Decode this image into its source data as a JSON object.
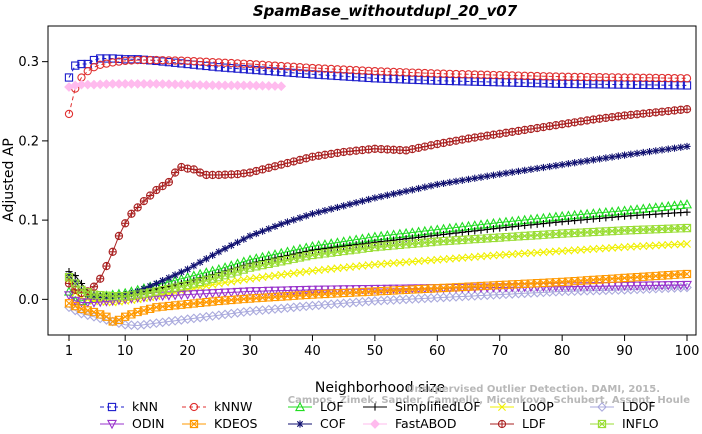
{
  "chart_data": {
    "type": "line",
    "title": "SpamBase_withoutdupl_20_v07",
    "xlabel": "Neighborhood size",
    "ylabel": "Adjusted AP",
    "xlim": [
      1,
      100
    ],
    "ylim": [
      -0.045,
      0.345
    ],
    "x_ticks": [
      1,
      10,
      20,
      30,
      40,
      50,
      60,
      70,
      80,
      90,
      100
    ],
    "y_ticks": [
      0.0,
      0.1,
      0.2,
      0.3
    ],
    "y_tick_labels": [
      "0.0",
      "0.1",
      "0.2",
      "0.3"
    ],
    "grid": false,
    "legend_position": "bottom",
    "watermark": [
      "Unsupervised Outlier Detection. DAMI, 2015.",
      "Campos, Zimek, Sander, Campello, Micenkova, Schubert, Assent, Houle"
    ],
    "series": [
      {
        "name": "kNN",
        "color": "#1c1ccc",
        "marker": "square",
        "dashed": true,
        "points": [
          [
            1,
            0.28
          ],
          [
            2,
            0.295
          ],
          [
            3,
            0.297
          ],
          [
            4,
            0.297
          ],
          [
            5,
            0.302
          ],
          [
            6,
            0.304
          ],
          [
            7,
            0.304
          ],
          [
            8,
            0.304
          ],
          [
            10,
            0.303
          ],
          [
            12,
            0.303
          ],
          [
            15,
            0.301
          ],
          [
            20,
            0.297
          ],
          [
            25,
            0.293
          ],
          [
            30,
            0.29
          ],
          [
            40,
            0.284
          ],
          [
            50,
            0.279
          ],
          [
            60,
            0.276
          ],
          [
            70,
            0.274
          ],
          [
            80,
            0.272
          ],
          [
            90,
            0.271
          ],
          [
            100,
            0.27
          ]
        ]
      },
      {
        "name": "kNNW",
        "color": "#e03030",
        "marker": "circle",
        "dashed": true,
        "points": [
          [
            1,
            0.234
          ],
          [
            2,
            0.266
          ],
          [
            3,
            0.28
          ],
          [
            4,
            0.288
          ],
          [
            5,
            0.293
          ],
          [
            6,
            0.296
          ],
          [
            8,
            0.299
          ],
          [
            10,
            0.301
          ],
          [
            12,
            0.302
          ],
          [
            15,
            0.302
          ],
          [
            20,
            0.301
          ],
          [
            25,
            0.299
          ],
          [
            30,
            0.297
          ],
          [
            40,
            0.292
          ],
          [
            50,
            0.288
          ],
          [
            60,
            0.285
          ],
          [
            70,
            0.283
          ],
          [
            80,
            0.281
          ],
          [
            90,
            0.28
          ],
          [
            100,
            0.279
          ]
        ]
      },
      {
        "name": "LOF",
        "color": "#22dd22",
        "marker": "triangle-up",
        "dashed": false,
        "points": [
          [
            1,
            0.01
          ],
          [
            2,
            -0.002
          ],
          [
            3,
            -0.002
          ],
          [
            5,
            0.002
          ],
          [
            8,
            0.006
          ],
          [
            10,
            0.008
          ],
          [
            12,
            0.012
          ],
          [
            15,
            0.018
          ],
          [
            20,
            0.028
          ],
          [
            25,
            0.038
          ],
          [
            30,
            0.05
          ],
          [
            40,
            0.067
          ],
          [
            50,
            0.079
          ],
          [
            60,
            0.088
          ],
          [
            70,
            0.097
          ],
          [
            80,
            0.105
          ],
          [
            90,
            0.112
          ],
          [
            100,
            0.12
          ]
        ]
      },
      {
        "name": "SimplifiedLOF",
        "color": "#000000",
        "marker": "plus",
        "dashed": false,
        "points": [
          [
            1,
            0.035
          ],
          [
            2,
            0.03
          ],
          [
            3,
            0.02
          ],
          [
            4,
            0.01
          ],
          [
            5,
            0.006
          ],
          [
            6,
            0.004
          ],
          [
            8,
            0.004
          ],
          [
            10,
            0.006
          ],
          [
            12,
            0.008
          ],
          [
            15,
            0.013
          ],
          [
            20,
            0.022
          ],
          [
            25,
            0.033
          ],
          [
            30,
            0.045
          ],
          [
            40,
            0.062
          ],
          [
            50,
            0.072
          ],
          [
            60,
            0.081
          ],
          [
            70,
            0.09
          ],
          [
            80,
            0.098
          ],
          [
            90,
            0.105
          ],
          [
            100,
            0.11
          ]
        ]
      },
      {
        "name": "LoOP",
        "color": "#f0f000",
        "marker": "cross",
        "dashed": false,
        "points": [
          [
            1,
            0.025
          ],
          [
            2,
            0.008
          ],
          [
            3,
            0.002
          ],
          [
            5,
            -0.002
          ],
          [
            8,
            -0.004
          ],
          [
            10,
            -0.002
          ],
          [
            12,
            0.0
          ],
          [
            15,
            0.004
          ],
          [
            20,
            0.012
          ],
          [
            25,
            0.02
          ],
          [
            30,
            0.026
          ],
          [
            40,
            0.036
          ],
          [
            50,
            0.044
          ],
          [
            60,
            0.05
          ],
          [
            70,
            0.056
          ],
          [
            80,
            0.061
          ],
          [
            90,
            0.066
          ],
          [
            100,
            0.07
          ]
        ]
      },
      {
        "name": "LDOF",
        "color": "#aaaadd",
        "marker": "diamond",
        "dashed": false,
        "points": [
          [
            1,
            -0.01
          ],
          [
            3,
            -0.018
          ],
          [
            5,
            -0.022
          ],
          [
            8,
            -0.028
          ],
          [
            10,
            -0.032
          ],
          [
            12,
            -0.033
          ],
          [
            15,
            -0.03
          ],
          [
            20,
            -0.025
          ],
          [
            25,
            -0.02
          ],
          [
            30,
            -0.015
          ],
          [
            40,
            -0.008
          ],
          [
            50,
            -0.002
          ],
          [
            60,
            0.002
          ],
          [
            70,
            0.006
          ],
          [
            80,
            0.01
          ],
          [
            90,
            0.012
          ],
          [
            100,
            0.015
          ]
        ]
      },
      {
        "name": "ODIN",
        "color": "#9933cc",
        "marker": "triangle-down",
        "dashed": false,
        "points": [
          [
            1,
            0.005
          ],
          [
            2,
            -0.002
          ],
          [
            3,
            -0.004
          ],
          [
            5,
            -0.004
          ],
          [
            8,
            -0.002
          ],
          [
            10,
            0.0
          ],
          [
            12,
            0.002
          ],
          [
            15,
            0.004
          ],
          [
            20,
            0.006
          ],
          [
            25,
            0.008
          ],
          [
            30,
            0.01
          ],
          [
            40,
            0.012
          ],
          [
            50,
            0.013
          ],
          [
            60,
            0.014
          ],
          [
            70,
            0.015
          ],
          [
            80,
            0.016
          ],
          [
            90,
            0.017
          ],
          [
            100,
            0.018
          ]
        ]
      },
      {
        "name": "KDEOS",
        "color": "#ff9900",
        "marker": "box-x",
        "dashed": false,
        "points": [
          [
            1,
            -0.005
          ],
          [
            3,
            -0.012
          ],
          [
            5,
            -0.016
          ],
          [
            7,
            -0.022
          ],
          [
            8,
            -0.028
          ],
          [
            9,
            -0.026
          ],
          [
            10,
            -0.022
          ],
          [
            12,
            -0.016
          ],
          [
            15,
            -0.01
          ],
          [
            20,
            -0.006
          ],
          [
            25,
            -0.002
          ],
          [
            30,
            0.001
          ],
          [
            40,
            0.006
          ],
          [
            50,
            0.01
          ],
          [
            60,
            0.014
          ],
          [
            70,
            0.018
          ],
          [
            80,
            0.022
          ],
          [
            90,
            0.027
          ],
          [
            100,
            0.032
          ]
        ]
      },
      {
        "name": "COF",
        "color": "#101070",
        "marker": "star",
        "dashed": false,
        "points": [
          [
            1,
            0.03
          ],
          [
            2,
            0.022
          ],
          [
            3,
            0.012
          ],
          [
            4,
            0.006
          ],
          [
            5,
            0.004
          ],
          [
            7,
            0.003
          ],
          [
            10,
            0.005
          ],
          [
            12,
            0.01
          ],
          [
            15,
            0.02
          ],
          [
            20,
            0.038
          ],
          [
            25,
            0.06
          ],
          [
            30,
            0.08
          ],
          [
            35,
            0.095
          ],
          [
            40,
            0.108
          ],
          [
            50,
            0.128
          ],
          [
            60,
            0.145
          ],
          [
            70,
            0.158
          ],
          [
            80,
            0.17
          ],
          [
            90,
            0.182
          ],
          [
            100,
            0.193
          ]
        ]
      },
      {
        "name": "FastABOD",
        "color": "#ffbbee",
        "marker": "diamond-filled",
        "dashed": false,
        "points": [
          [
            1,
            0.268
          ],
          [
            2,
            0.27
          ],
          [
            3,
            0.271
          ],
          [
            5,
            0.271
          ],
          [
            8,
            0.272
          ],
          [
            10,
            0.272
          ],
          [
            12,
            0.272
          ],
          [
            15,
            0.272
          ],
          [
            20,
            0.271
          ],
          [
            25,
            0.27
          ],
          [
            30,
            0.27
          ],
          [
            35,
            0.269
          ]
        ]
      },
      {
        "name": "LDF",
        "color": "#aa2222",
        "marker": "circle-plus",
        "dashed": false,
        "points": [
          [
            1,
            0.02
          ],
          [
            2,
            0.012
          ],
          [
            3,
            0.008
          ],
          [
            4,
            0.01
          ],
          [
            5,
            0.016
          ],
          [
            6,
            0.026
          ],
          [
            7,
            0.042
          ],
          [
            8,
            0.06
          ],
          [
            9,
            0.08
          ],
          [
            10,
            0.096
          ],
          [
            11,
            0.108
          ],
          [
            12,
            0.116
          ],
          [
            13,
            0.124
          ],
          [
            15,
            0.138
          ],
          [
            17,
            0.148
          ],
          [
            18,
            0.16
          ],
          [
            19,
            0.167
          ],
          [
            20,
            0.165
          ],
          [
            21,
            0.164
          ],
          [
            22,
            0.16
          ],
          [
            23,
            0.157
          ],
          [
            25,
            0.157
          ],
          [
            28,
            0.158
          ],
          [
            30,
            0.16
          ],
          [
            35,
            0.17
          ],
          [
            40,
            0.18
          ],
          [
            45,
            0.186
          ],
          [
            50,
            0.19
          ],
          [
            55,
            0.188
          ],
          [
            60,
            0.196
          ],
          [
            65,
            0.203
          ],
          [
            70,
            0.209
          ],
          [
            75,
            0.215
          ],
          [
            80,
            0.221
          ],
          [
            85,
            0.227
          ],
          [
            90,
            0.232
          ],
          [
            95,
            0.236
          ],
          [
            100,
            0.24
          ]
        ]
      },
      {
        "name": "INFLO",
        "color": "#99dd33",
        "marker": "box-x-green",
        "dashed": false,
        "points": [
          [
            1,
            0.028
          ],
          [
            2,
            0.02
          ],
          [
            3,
            0.012
          ],
          [
            5,
            0.006
          ],
          [
            8,
            0.004
          ],
          [
            10,
            0.004
          ],
          [
            12,
            0.006
          ],
          [
            15,
            0.01
          ],
          [
            20,
            0.018
          ],
          [
            25,
            0.028
          ],
          [
            30,
            0.04
          ],
          [
            40,
            0.056
          ],
          [
            50,
            0.066
          ],
          [
            60,
            0.073
          ],
          [
            70,
            0.078
          ],
          [
            80,
            0.083
          ],
          [
            90,
            0.087
          ],
          [
            100,
            0.09
          ]
        ]
      }
    ]
  }
}
